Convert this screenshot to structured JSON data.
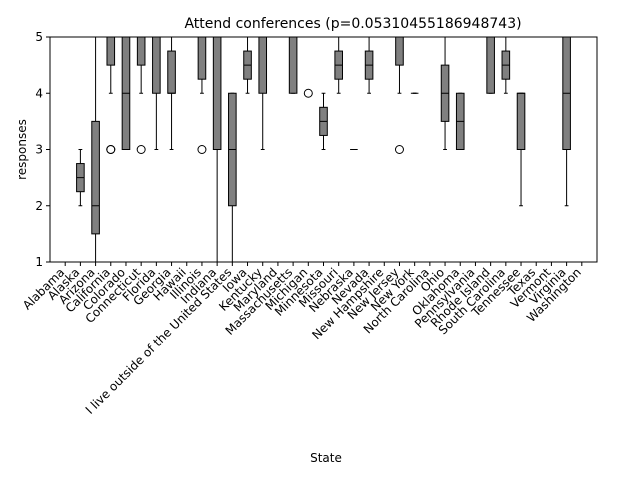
{
  "chart_data": {
    "type": "box",
    "title": "Attend conferences (p=0.05310455186948743)",
    "xlabel": "State",
    "ylabel": "responses",
    "ylim": [
      1,
      5
    ],
    "yticks": [
      1,
      2,
      3,
      4,
      5
    ],
    "grid": false,
    "box_color": "#808080",
    "categories": [
      "Alabama",
      "Alaska",
      "Arizona",
      "California",
      "Colorado",
      "Connecticut",
      "Florida",
      "Georgia",
      "Hawaii",
      "Illinois",
      "Indiana",
      "I live outside of the United States",
      "Iowa",
      "Kentucky",
      "Maryland",
      "Massachusetts",
      "Michigan",
      "Minnesota",
      "Missouri",
      "Nebraska",
      "Nevada",
      "New Hampshire",
      "New Jersey",
      "New York",
      "North Carolina",
      "Ohio",
      "Oklahoma",
      "Pennsylvania",
      "Rhode Island",
      "South Carolina",
      "Tennessee",
      "Texas",
      "Vermont",
      "Virginia",
      "Washington"
    ],
    "boxes": [
      {
        "whislo": 5,
        "q1": 5,
        "med": 5,
        "q3": 5,
        "whishi": 5,
        "fliers": []
      },
      {
        "whislo": 2,
        "q1": 2.25,
        "med": 2.5,
        "q3": 2.75,
        "whishi": 3,
        "fliers": []
      },
      {
        "whislo": 1,
        "q1": 1.5,
        "med": 2,
        "q3": 3.5,
        "whishi": 5,
        "fliers": []
      },
      {
        "whislo": 4,
        "q1": 4.5,
        "med": 5,
        "q3": 5,
        "whishi": 5,
        "fliers": [
          3,
          3
        ]
      },
      {
        "whislo": 3,
        "q1": 3,
        "med": 4,
        "q3": 5,
        "whishi": 5,
        "fliers": []
      },
      {
        "whislo": 4,
        "q1": 4.5,
        "med": 5,
        "q3": 5,
        "whishi": 5,
        "fliers": [
          3
        ]
      },
      {
        "whislo": 3,
        "q1": 4,
        "med": 5,
        "q3": 5,
        "whishi": 5,
        "fliers": []
      },
      {
        "whislo": 3,
        "q1": 4,
        "med": 4,
        "q3": 4.75,
        "whishi": 5,
        "fliers": []
      },
      {
        "whislo": 5,
        "q1": 5,
        "med": 5,
        "q3": 5,
        "whishi": 5,
        "fliers": []
      },
      {
        "whislo": 4,
        "q1": 4.25,
        "med": 5,
        "q3": 5,
        "whishi": 5,
        "fliers": [
          3
        ]
      },
      {
        "whislo": 1,
        "q1": 3,
        "med": 5,
        "q3": 5,
        "whishi": 5,
        "fliers": []
      },
      {
        "whislo": 1,
        "q1": 2,
        "med": 3,
        "q3": 4,
        "whishi": 4,
        "fliers": []
      },
      {
        "whislo": 4,
        "q1": 4.25,
        "med": 4.5,
        "q3": 4.75,
        "whishi": 5,
        "fliers": []
      },
      {
        "whislo": 3,
        "q1": 4,
        "med": 5,
        "q3": 5,
        "whishi": 5,
        "fliers": []
      },
      {
        "whislo": 5,
        "q1": 5,
        "med": 5,
        "q3": 5,
        "whishi": 5,
        "fliers": []
      },
      {
        "whislo": 4,
        "q1": 4,
        "med": 5,
        "q3": 5,
        "whishi": 5,
        "fliers": []
      },
      {
        "whislo": 5,
        "q1": 5,
        "med": 5,
        "q3": 5,
        "whishi": 5,
        "fliers": [
          4
        ]
      },
      {
        "whislo": 3,
        "q1": 3.25,
        "med": 3.5,
        "q3": 3.75,
        "whishi": 4,
        "fliers": []
      },
      {
        "whislo": 4,
        "q1": 4.25,
        "med": 4.5,
        "q3": 4.75,
        "whishi": 5,
        "fliers": []
      },
      {
        "whislo": 3,
        "q1": 3,
        "med": 3,
        "q3": 3,
        "whishi": 3,
        "fliers": []
      },
      {
        "whislo": 4,
        "q1": 4.25,
        "med": 4.5,
        "q3": 4.75,
        "whishi": 5,
        "fliers": []
      },
      {
        "whislo": 5,
        "q1": 5,
        "med": 5,
        "q3": 5,
        "whishi": 5,
        "fliers": []
      },
      {
        "whislo": 4,
        "q1": 4.5,
        "med": 5,
        "q3": 5,
        "whishi": 5,
        "fliers": [
          3
        ]
      },
      {
        "whislo": 4,
        "q1": 4,
        "med": 4,
        "q3": 4,
        "whishi": 4,
        "fliers": []
      },
      {
        "whislo": 5,
        "q1": 5,
        "med": 5,
        "q3": 5,
        "whishi": 5,
        "fliers": []
      },
      {
        "whislo": 3,
        "q1": 3.5,
        "med": 4,
        "q3": 4.5,
        "whishi": 5,
        "fliers": []
      },
      {
        "whislo": 3,
        "q1": 3,
        "med": 3.5,
        "q3": 4,
        "whishi": 4,
        "fliers": []
      },
      {
        "whislo": 5,
        "q1": 5,
        "med": 5,
        "q3": 5,
        "whishi": 5,
        "fliers": []
      },
      {
        "whislo": 4,
        "q1": 4,
        "med": 5,
        "q3": 5,
        "whishi": 5,
        "fliers": []
      },
      {
        "whislo": 4,
        "q1": 4.25,
        "med": 4.5,
        "q3": 4.75,
        "whishi": 5,
        "fliers": []
      },
      {
        "whislo": 2,
        "q1": 3,
        "med": 4,
        "q3": 4,
        "whishi": 4,
        "fliers": []
      },
      {
        "whislo": 5,
        "q1": 5,
        "med": 5,
        "q3": 5,
        "whishi": 5,
        "fliers": []
      },
      {
        "whislo": 5,
        "q1": 5,
        "med": 5,
        "q3": 5,
        "whishi": 5,
        "fliers": []
      },
      {
        "whislo": 2,
        "q1": 3,
        "med": 4,
        "q3": 5,
        "whishi": 5,
        "fliers": []
      },
      {
        "whislo": 5,
        "q1": 5,
        "med": 5,
        "q3": 5,
        "whishi": 5,
        "fliers": []
      }
    ]
  }
}
